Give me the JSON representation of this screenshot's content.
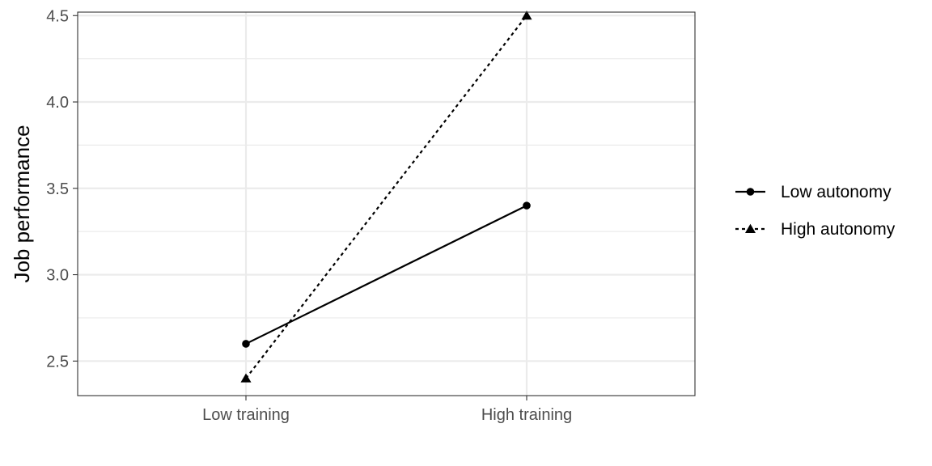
{
  "chart_data": {
    "type": "line",
    "title": "",
    "xlabel": "",
    "ylabel": "Job performance",
    "categories": [
      "Low training",
      "High training"
    ],
    "ylim": [
      2.3,
      4.52
    ],
    "yticks": [
      2.5,
      3.0,
      3.5,
      4.0,
      4.5
    ],
    "ytick_labels": [
      "2.5",
      "3.0",
      "3.5",
      "4.0",
      "4.5"
    ],
    "grid": true,
    "legend_position": "right",
    "series": [
      {
        "name": "Low autonomy",
        "values": [
          2.6,
          3.4
        ],
        "line_style": "solid",
        "marker": "circle",
        "color": "#000000"
      },
      {
        "name": "High autonomy",
        "values": [
          2.4,
          4.5
        ],
        "line_style": "dotted",
        "marker": "triangle",
        "color": "#000000"
      }
    ]
  }
}
